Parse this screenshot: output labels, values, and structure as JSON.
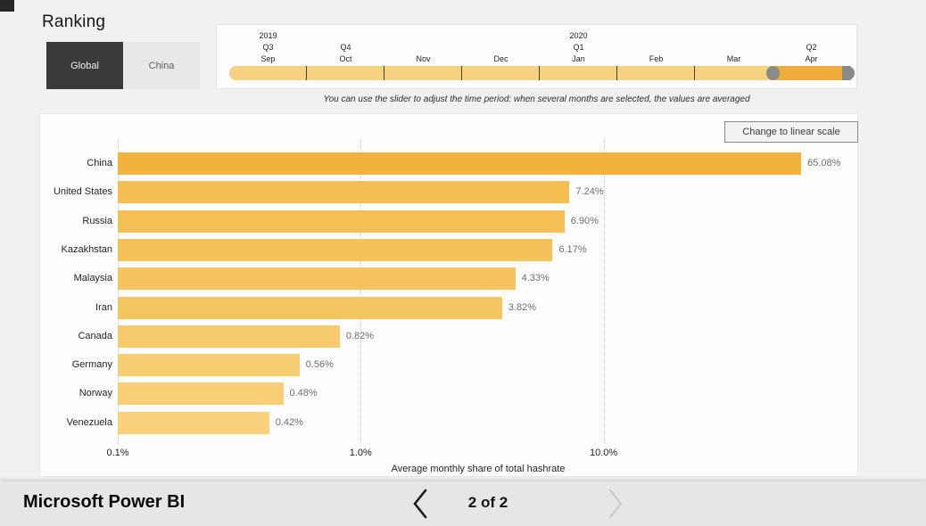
{
  "title": "Ranking",
  "toggle": {
    "global_label": "Global",
    "china_label": "China",
    "selected": "Global"
  },
  "slider": {
    "labels": [
      {
        "year": "2019",
        "quarter": "Q3",
        "month": "Sep"
      },
      {
        "year": "",
        "quarter": "Q4",
        "month": "Oct"
      },
      {
        "year": "",
        "quarter": "",
        "month": "Nov"
      },
      {
        "year": "",
        "quarter": "",
        "month": "Dec"
      },
      {
        "year": "2020",
        "quarter": "Q1",
        "month": "Jan"
      },
      {
        "year": "",
        "quarter": "",
        "month": "Feb"
      },
      {
        "year": "",
        "quarter": "",
        "month": "Mar"
      },
      {
        "year": "",
        "quarter": "Q2",
        "month": "Apr"
      }
    ],
    "selected_month": "Apr",
    "colors": {
      "track": "#F5D180",
      "selected_segment": "#EFAC3B",
      "handle": "#8A8A8A",
      "separator": "#3F3F3F"
    }
  },
  "instruction": "You can use the slider to adjust the time period: when several months are selected, the values are averaged",
  "scale_button_label": "Change to linear scale",
  "chart_data": {
    "type": "bar",
    "orientation": "horizontal",
    "x_scale": "log",
    "categories": [
      "China",
      "United States",
      "Russia",
      "Kazakhstan",
      "Malaysia",
      "Iran",
      "Canada",
      "Germany",
      "Norway",
      "Venezuela"
    ],
    "values": [
      65.08,
      7.24,
      6.9,
      6.17,
      4.33,
      3.82,
      0.82,
      0.56,
      0.48,
      0.42
    ],
    "value_labels": [
      "65.08%",
      "7.24%",
      "6.90%",
      "6.17%",
      "4.33%",
      "3.82%",
      "0.82%",
      "0.56%",
      "0.48%",
      "0.42%"
    ],
    "bar_colors": [
      "#F1B23E",
      "#F4BE52",
      "#F4BF55",
      "#F5C25A",
      "#F5C45F",
      "#F5C562",
      "#F7CB6D",
      "#F7CD72",
      "#F8CF76",
      "#F8D17A"
    ],
    "x_ticks": [
      {
        "label": "0.1%",
        "value": 0.1
      },
      {
        "label": "1.0%",
        "value": 1.0
      },
      {
        "label": "10.0%",
        "value": 10.0
      }
    ],
    "xlim": [
      0.1,
      100
    ],
    "grid": "dotted-vertical",
    "xlabel": "Average monthly share of total hashrate"
  },
  "footer": {
    "brand": "Microsoft Power BI",
    "page_indicator": "2 of 2",
    "prev_enabled": true,
    "next_enabled": false,
    "prev_color": "#1b1b1b",
    "next_color": "#c9c9c9"
  }
}
